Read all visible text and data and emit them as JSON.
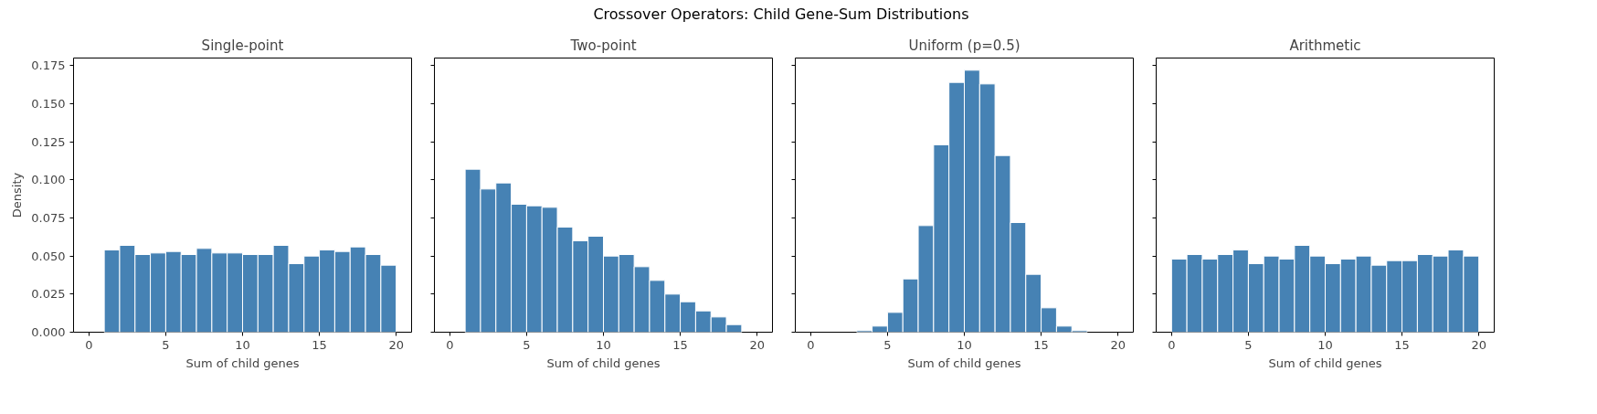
{
  "chart_data": [
    {
      "type": "histogram",
      "title": "Single-point",
      "annotations": [
        "Crossover Operators: Child Gene-Sum Distributions"
      ],
      "xlabel": "Sum of child genes",
      "ylabel": "Density",
      "color": "#4682b4",
      "grid": false,
      "bins": [
        0,
        1,
        2,
        3,
        4,
        5,
        6,
        7,
        8,
        9,
        10,
        11,
        12,
        13,
        14,
        15,
        16,
        17,
        18,
        19,
        20
      ],
      "values": [
        0,
        0.054,
        0.057,
        0.051,
        0.052,
        0.053,
        0.051,
        0.055,
        0.052,
        0.052,
        0.051,
        0.051,
        0.057,
        0.045,
        0.05,
        0.054,
        0.053,
        0.056,
        0.051,
        0.044
      ],
      "xlim": [
        -1,
        21
      ],
      "xticks": [
        0,
        5,
        10,
        15,
        20
      ],
      "ylim": [
        0,
        0.18
      ],
      "yticks": [
        {
          "value": 0,
          "label": "0.000"
        },
        0.025,
        {
          "value": 0.05,
          "label": "0.050"
        },
        0.075,
        {
          "value": 0.1,
          "label": "0.100"
        },
        0.125,
        {
          "value": 0.15,
          "label": "0.150"
        },
        0.175
      ]
    },
    {
      "type": "histogram",
      "title": "Two-point",
      "xlabel": "Sum of child genes",
      "color": "#4682b4",
      "grid": false,
      "tick_labels": "x",
      "bins": [
        0,
        1,
        2,
        3,
        4,
        5,
        6,
        7,
        8,
        9,
        10,
        11,
        12,
        13,
        14,
        15,
        16,
        17,
        18,
        19,
        20
      ],
      "values": [
        0,
        0.107,
        0.094,
        0.098,
        0.084,
        0.083,
        0.082,
        0.069,
        0.06,
        0.063,
        0.05,
        0.051,
        0.043,
        0.034,
        0.025,
        0.02,
        0.014,
        0.01,
        0.005,
        0
      ],
      "xlim": [
        -1,
        21
      ],
      "xticks": [
        0,
        5,
        10,
        15,
        20
      ],
      "ylim": [
        0,
        0.18
      ],
      "yticks": [
        {
          "value": 0,
          "label": null
        },
        {
          "value": 0.025,
          "label": null
        },
        {
          "value": 0.05,
          "label": null
        },
        {
          "value": 0.075,
          "label": null
        },
        {
          "value": 0.1,
          "label": null
        },
        {
          "value": 0.125,
          "label": null
        },
        {
          "value": 0.15,
          "label": null
        },
        {
          "value": 0.175,
          "label": null
        }
      ]
    },
    {
      "type": "histogram",
      "title": "Uniform (p=0.5)",
      "xlabel": "Sum of child genes",
      "color": "#4682b4",
      "grid": false,
      "tick_labels": "x",
      "bins": [
        0,
        1,
        2,
        3,
        4,
        5,
        6,
        7,
        8,
        9,
        10,
        11,
        12,
        13,
        14,
        15,
        16,
        17,
        18,
        19,
        20
      ],
      "values": [
        0,
        0,
        0,
        0.001,
        0.004,
        0.013,
        0.035,
        0.07,
        0.123,
        0.164,
        0.172,
        0.163,
        0.116,
        0.072,
        0.038,
        0.016,
        0.004,
        0.001,
        0,
        0
      ],
      "xlim": [
        -1,
        21
      ],
      "xticks": [
        0,
        5,
        10,
        15,
        20
      ],
      "ylim": [
        0,
        0.18
      ],
      "yticks": [
        {
          "value": 0,
          "label": null
        },
        {
          "value": 0.025,
          "label": null
        },
        {
          "value": 0.05,
          "label": null
        },
        {
          "value": 0.075,
          "label": null
        },
        {
          "value": 0.1,
          "label": null
        },
        {
          "value": 0.125,
          "label": null
        },
        {
          "value": 0.15,
          "label": null
        },
        {
          "value": 0.175,
          "label": null
        }
      ]
    },
    {
      "type": "histogram",
      "title": "Arithmetic",
      "xlabel": "Sum of child genes",
      "color": "#4682b4",
      "grid": false,
      "tick_labels": "x",
      "bins": [
        0,
        1,
        2,
        3,
        4,
        5,
        6,
        7,
        8,
        9,
        10,
        11,
        12,
        13,
        14,
        15,
        16,
        17,
        18,
        19,
        20
      ],
      "values": [
        0.048,
        0.051,
        0.048,
        0.051,
        0.054,
        0.045,
        0.05,
        0.048,
        0.057,
        0.05,
        0.045,
        0.048,
        0.05,
        0.044,
        0.047,
        0.047,
        0.051,
        0.05,
        0.054,
        0.05
      ],
      "xlim": [
        -1,
        21
      ],
      "xticks": [
        0,
        5,
        10,
        15,
        20
      ],
      "ylim": [
        0,
        0.18
      ],
      "yticks": [
        {
          "value": 0,
          "label": null
        },
        {
          "value": 0.025,
          "label": null
        },
        {
          "value": 0.05,
          "label": null
        },
        {
          "value": 0.075,
          "label": null
        },
        {
          "value": 0.1,
          "label": null
        },
        {
          "value": 0.125,
          "label": null
        },
        {
          "value": 0.15,
          "label": null
        },
        {
          "value": 0.175,
          "label": null
        }
      ]
    }
  ]
}
